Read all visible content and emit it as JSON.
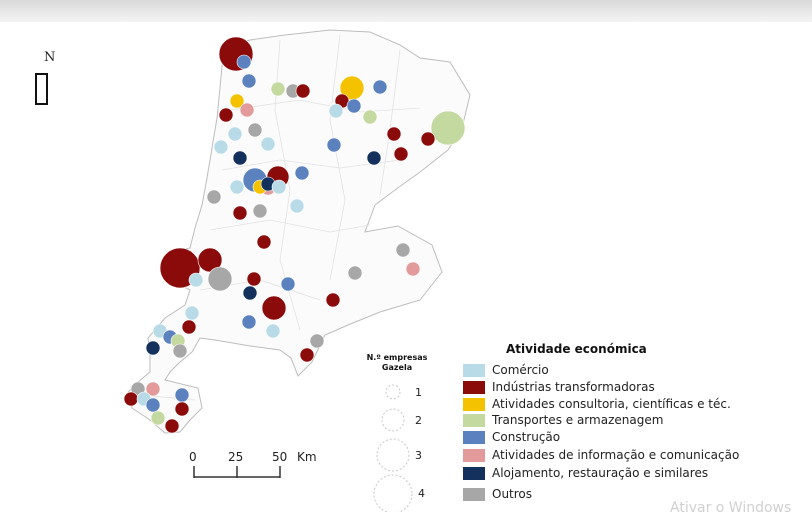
{
  "north_label": "N",
  "size_legend": {
    "title_line1": "N.º empresas",
    "title_line2": "Gazela",
    "items": [
      {
        "value": 1,
        "label": "1"
      },
      {
        "value": 2,
        "label": "2"
      },
      {
        "value": 3,
        "label": "3"
      },
      {
        "value": 4,
        "label": "4"
      }
    ]
  },
  "legend": {
    "title": "Atividade económica",
    "items": [
      {
        "key": "comercio",
        "label": "Comércio",
        "color": "#b9dbe8"
      },
      {
        "key": "industria",
        "label": "Indústrias transformadoras",
        "color": "#8b0a0a"
      },
      {
        "key": "consultoria",
        "label": "Atividades consultoria, científicas e téc.",
        "color": "#f5c200"
      },
      {
        "key": "transportes",
        "label": "Transportes e armazenagem",
        "color": "#c4d9a0"
      },
      {
        "key": "construcao",
        "label": "Construção",
        "color": "#5b82bf"
      },
      {
        "key": "informacao",
        "label": "Atividades de informação e comunicação",
        "color": "#e39a9a"
      },
      {
        "key": "alojamento",
        "label": "Alojamento, restauração e similares",
        "color": "#13315c"
      },
      {
        "key": "outros",
        "label": "Outros",
        "color": "#a7a7a7"
      }
    ]
  },
  "scale_bar": {
    "ticks": [
      "0",
      "25",
      "50"
    ],
    "unit": "Km"
  },
  "watermark": "Ativar o Windows"
}
